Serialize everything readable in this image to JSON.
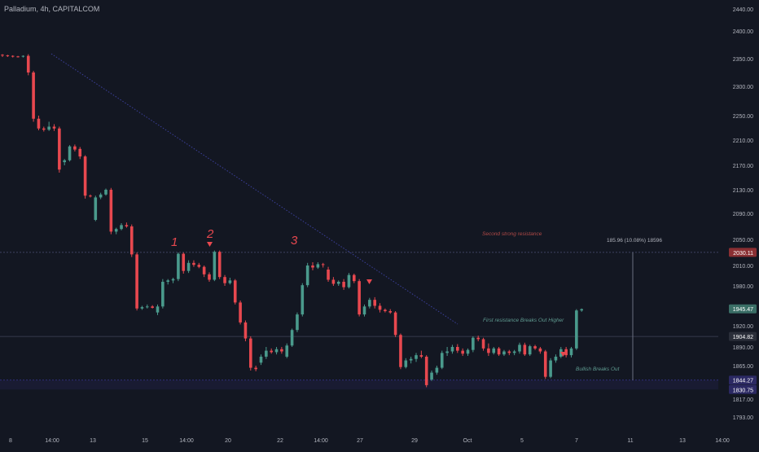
{
  "header": {
    "symbol": "Palladium, 4h, CAPITALCOM"
  },
  "colors": {
    "background": "#131722",
    "up": "#4a9a8c",
    "down": "#e8484f",
    "trendline": "#3b3f9a",
    "resistance_text": "#b14a47",
    "annotation_green": "#5f9a90",
    "wave_label": "#e8484f",
    "axis_text": "#b2b5be",
    "price_box": "#2a2e39",
    "resistance_box": "#8a2f33",
    "support_box": "#2b2963"
  },
  "chart_data": {
    "type": "candlestick",
    "title": "Palladium, 4h, CAPITALCOM",
    "x_ticks": [
      "8",
      "14:00",
      "13",
      "15",
      "14:00",
      "20",
      "22",
      "14:00",
      "27",
      "29",
      "Oct",
      "5",
      "7",
      "11",
      "13",
      "14:00"
    ],
    "y_ticks": [
      2440.0,
      2400.0,
      2350.0,
      2300.0,
      2250.0,
      2210.0,
      2170.0,
      2130.0,
      2090.0,
      2050.0,
      2010.0,
      1980.0,
      1920.0,
      1890.0,
      1865.0,
      1817.0,
      1793.0
    ],
    "y_tick_labels": [
      "2440.00",
      "2400.00",
      "2350.00",
      "2300.00",
      "2250.00",
      "2210.00",
      "2170.00",
      "2130.00",
      "2090.00",
      "2050.00",
      "2010.00",
      "1980.00",
      "1920.00",
      "1890.00",
      "1865.00",
      "1817.00",
      "1793.00"
    ],
    "price_labels": [
      {
        "label": "2030.11",
        "value": 2030.11,
        "kind": "resistance"
      },
      {
        "label": "1945.47",
        "value": 1945.47,
        "kind": "last"
      },
      {
        "label": "1904.82",
        "value": 1904.82,
        "kind": "level"
      },
      {
        "label": "1844.27",
        "value": 1844.27,
        "kind": "support"
      },
      {
        "label": "1830.75",
        "value": 1830.75,
        "kind": "support"
      }
    ],
    "horizontal_levels": [
      2030.11,
      1904.82,
      1844.27
    ],
    "candles": [
      {
        "o": 2357,
        "h": 2358,
        "l": 2353,
        "c": 2356
      },
      {
        "o": 2356,
        "h": 2357,
        "l": 2353,
        "c": 2355
      },
      {
        "o": 2355,
        "h": 2356,
        "l": 2352,
        "c": 2354
      },
      {
        "o": 2354,
        "h": 2355,
        "l": 2352,
        "c": 2353
      },
      {
        "o": 2354,
        "h": 2356,
        "l": 2352,
        "c": 2355
      },
      {
        "o": 2355,
        "h": 2358,
        "l": 2320,
        "c": 2325
      },
      {
        "o": 2325,
        "h": 2328,
        "l": 2240,
        "c": 2245
      },
      {
        "o": 2245,
        "h": 2250,
        "l": 2226,
        "c": 2229
      },
      {
        "o": 2229,
        "h": 2232,
        "l": 2224,
        "c": 2227
      },
      {
        "o": 2227,
        "h": 2240,
        "l": 2225,
        "c": 2232
      },
      {
        "o": 2232,
        "h": 2236,
        "l": 2225,
        "c": 2229
      },
      {
        "o": 2229,
        "h": 2232,
        "l": 2158,
        "c": 2163
      },
      {
        "o": 2175,
        "h": 2180,
        "l": 2170,
        "c": 2178
      },
      {
        "o": 2178,
        "h": 2202,
        "l": 2176,
        "c": 2200
      },
      {
        "o": 2200,
        "h": 2203,
        "l": 2192,
        "c": 2195
      },
      {
        "o": 2196,
        "h": 2199,
        "l": 2180,
        "c": 2184
      },
      {
        "o": 2184,
        "h": 2186,
        "l": 2115,
        "c": 2120
      },
      {
        "o": 2120,
        "h": 2122,
        "l": 2117,
        "c": 2119
      },
      {
        "o": 2080,
        "h": 2120,
        "l": 2078,
        "c": 2117
      },
      {
        "o": 2117,
        "h": 2125,
        "l": 2114,
        "c": 2122
      },
      {
        "o": 2122,
        "h": 2132,
        "l": 2120,
        "c": 2130
      },
      {
        "o": 2130,
        "h": 2133,
        "l": 2058,
        "c": 2062
      },
      {
        "o": 2062,
        "h": 2068,
        "l": 2058,
        "c": 2066
      },
      {
        "o": 2066,
        "h": 2075,
        "l": 2064,
        "c": 2072
      },
      {
        "o": 2072,
        "h": 2076,
        "l": 2068,
        "c": 2070
      },
      {
        "o": 2070,
        "h": 2073,
        "l": 2023,
        "c": 2027
      },
      {
        "o": 2027,
        "h": 2030,
        "l": 1943,
        "c": 1946
      },
      {
        "o": 1946,
        "h": 1950,
        "l": 1944,
        "c": 1948
      },
      {
        "o": 1948,
        "h": 1952,
        "l": 1946,
        "c": 1949
      },
      {
        "o": 1949,
        "h": 1951,
        "l": 1946,
        "c": 1947
      },
      {
        "o": 1940,
        "h": 1952,
        "l": 1936,
        "c": 1949
      },
      {
        "o": 1949,
        "h": 1990,
        "l": 1946,
        "c": 1986
      },
      {
        "o": 1986,
        "h": 1990,
        "l": 1982,
        "c": 1988
      },
      {
        "o": 1988,
        "h": 1992,
        "l": 1984,
        "c": 1990
      },
      {
        "o": 1990,
        "h": 2030,
        "l": 1987,
        "c": 2028
      },
      {
        "o": 2028,
        "h": 2030,
        "l": 1998,
        "c": 2002
      },
      {
        "o": 2002,
        "h": 2018,
        "l": 1999,
        "c": 2014
      },
      {
        "o": 2014,
        "h": 2018,
        "l": 2008,
        "c": 2011
      },
      {
        "o": 2011,
        "h": 2014,
        "l": 2006,
        "c": 2008
      },
      {
        "o": 2008,
        "h": 2010,
        "l": 1993,
        "c": 1997
      },
      {
        "o": 1997,
        "h": 2000,
        "l": 1986,
        "c": 1989
      },
      {
        "o": 1989,
        "h": 2033,
        "l": 1987,
        "c": 2031
      },
      {
        "o": 2031,
        "h": 2033,
        "l": 1990,
        "c": 1993
      },
      {
        "o": 1993,
        "h": 1996,
        "l": 1980,
        "c": 1984
      },
      {
        "o": 1984,
        "h": 1992,
        "l": 1982,
        "c": 1988
      },
      {
        "o": 1988,
        "h": 1990,
        "l": 1952,
        "c": 1955
      },
      {
        "o": 1955,
        "h": 1958,
        "l": 1922,
        "c": 1925
      },
      {
        "o": 1925,
        "h": 1928,
        "l": 1898,
        "c": 1902
      },
      {
        "o": 1902,
        "h": 1905,
        "l": 1858,
        "c": 1862
      },
      {
        "o": 1862,
        "h": 1865,
        "l": 1857,
        "c": 1860
      },
      {
        "o": 1869,
        "h": 1880,
        "l": 1866,
        "c": 1877
      },
      {
        "o": 1877,
        "h": 1890,
        "l": 1874,
        "c": 1885
      },
      {
        "o": 1885,
        "h": 1888,
        "l": 1881,
        "c": 1883
      },
      {
        "o": 1883,
        "h": 1890,
        "l": 1880,
        "c": 1887
      },
      {
        "o": 1887,
        "h": 1890,
        "l": 1881,
        "c": 1884
      },
      {
        "o": 1877,
        "h": 1895,
        "l": 1875,
        "c": 1892
      },
      {
        "o": 1892,
        "h": 1916,
        "l": 1890,
        "c": 1914
      },
      {
        "o": 1914,
        "h": 1940,
        "l": 1911,
        "c": 1937
      },
      {
        "o": 1937,
        "h": 1984,
        "l": 1934,
        "c": 1981
      },
      {
        "o": 1981,
        "h": 2014,
        "l": 1978,
        "c": 2010
      },
      {
        "o": 2010,
        "h": 2015,
        "l": 2003,
        "c": 2007
      },
      {
        "o": 2007,
        "h": 2015,
        "l": 2005,
        "c": 2012
      },
      {
        "o": 2012,
        "h": 2014,
        "l": 2007,
        "c": 2011
      },
      {
        "o": 2004,
        "h": 2008,
        "l": 1986,
        "c": 1989
      },
      {
        "o": 1989,
        "h": 1993,
        "l": 1980,
        "c": 1983
      },
      {
        "o": 1983,
        "h": 1988,
        "l": 1980,
        "c": 1986
      },
      {
        "o": 1986,
        "h": 1990,
        "l": 1974,
        "c": 1978
      },
      {
        "o": 1978,
        "h": 1999,
        "l": 1976,
        "c": 1996
      },
      {
        "o": 1996,
        "h": 1998,
        "l": 1984,
        "c": 1987
      },
      {
        "o": 1987,
        "h": 1990,
        "l": 1934,
        "c": 1937
      },
      {
        "o": 1937,
        "h": 1952,
        "l": 1934,
        "c": 1949
      },
      {
        "o": 1949,
        "h": 1962,
        "l": 1946,
        "c": 1959
      },
      {
        "o": 1959,
        "h": 1963,
        "l": 1946,
        "c": 1950
      },
      {
        "o": 1950,
        "h": 1954,
        "l": 1940,
        "c": 1944
      },
      {
        "o": 1944,
        "h": 1946,
        "l": 1940,
        "c": 1942
      },
      {
        "o": 1942,
        "h": 1945,
        "l": 1938,
        "c": 1940
      },
      {
        "o": 1940,
        "h": 1942,
        "l": 1904,
        "c": 1907
      },
      {
        "o": 1907,
        "h": 1909,
        "l": 1860,
        "c": 1863
      },
      {
        "o": 1863,
        "h": 1875,
        "l": 1861,
        "c": 1872
      },
      {
        "o": 1872,
        "h": 1877,
        "l": 1868,
        "c": 1874
      },
      {
        "o": 1874,
        "h": 1882,
        "l": 1870,
        "c": 1879
      },
      {
        "o": 1879,
        "h": 1885,
        "l": 1875,
        "c": 1877
      },
      {
        "o": 1877,
        "h": 1879,
        "l": 1834,
        "c": 1837
      },
      {
        "o": 1845,
        "h": 1858,
        "l": 1843,
        "c": 1855
      },
      {
        "o": 1855,
        "h": 1865,
        "l": 1852,
        "c": 1862
      },
      {
        "o": 1862,
        "h": 1885,
        "l": 1860,
        "c": 1882
      },
      {
        "o": 1882,
        "h": 1890,
        "l": 1878,
        "c": 1884
      },
      {
        "o": 1884,
        "h": 1893,
        "l": 1881,
        "c": 1890
      },
      {
        "o": 1890,
        "h": 1894,
        "l": 1882,
        "c": 1885
      },
      {
        "o": 1885,
        "h": 1888,
        "l": 1878,
        "c": 1881
      },
      {
        "o": 1881,
        "h": 1888,
        "l": 1878,
        "c": 1886
      },
      {
        "o": 1886,
        "h": 1905,
        "l": 1883,
        "c": 1903
      },
      {
        "o": 1903,
        "h": 1906,
        "l": 1898,
        "c": 1901
      },
      {
        "o": 1901,
        "h": 1903,
        "l": 1885,
        "c": 1888
      },
      {
        "o": 1888,
        "h": 1895,
        "l": 1878,
        "c": 1882
      },
      {
        "o": 1882,
        "h": 1890,
        "l": 1880,
        "c": 1888
      },
      {
        "o": 1888,
        "h": 1890,
        "l": 1878,
        "c": 1880
      },
      {
        "o": 1880,
        "h": 1886,
        "l": 1878,
        "c": 1884
      },
      {
        "o": 1884,
        "h": 1886,
        "l": 1879,
        "c": 1882
      },
      {
        "o": 1882,
        "h": 1886,
        "l": 1879,
        "c": 1884
      },
      {
        "o": 1884,
        "h": 1896,
        "l": 1881,
        "c": 1893
      },
      {
        "o": 1893,
        "h": 1896,
        "l": 1878,
        "c": 1880
      },
      {
        "o": 1880,
        "h": 1893,
        "l": 1878,
        "c": 1891
      },
      {
        "o": 1891,
        "h": 1893,
        "l": 1886,
        "c": 1888
      },
      {
        "o": 1888,
        "h": 1890,
        "l": 1881,
        "c": 1884
      },
      {
        "o": 1884,
        "h": 1886,
        "l": 1846,
        "c": 1849
      },
      {
        "o": 1849,
        "h": 1875,
        "l": 1847,
        "c": 1872
      },
      {
        "o": 1872,
        "h": 1880,
        "l": 1869,
        "c": 1877
      },
      {
        "o": 1877,
        "h": 1890,
        "l": 1875,
        "c": 1887
      },
      {
        "o": 1887,
        "h": 1890,
        "l": 1876,
        "c": 1879
      },
      {
        "o": 1879,
        "h": 1890,
        "l": 1876,
        "c": 1888
      },
      {
        "o": 1888,
        "h": 1945,
        "l": 1886,
        "c": 1943
      },
      {
        "o": 1943,
        "h": 1946,
        "l": 1941,
        "c": 1945
      }
    ],
    "annotations": {
      "wave_1": "1",
      "wave_2": "2",
      "wave_3": "3",
      "second_resistance": "Second strong resistance",
      "first_resistance": "First resistance Breaks Out Higher",
      "bullish": "Bullish Breaks Out",
      "measure": "185.96 (10.08%) 18596"
    }
  }
}
